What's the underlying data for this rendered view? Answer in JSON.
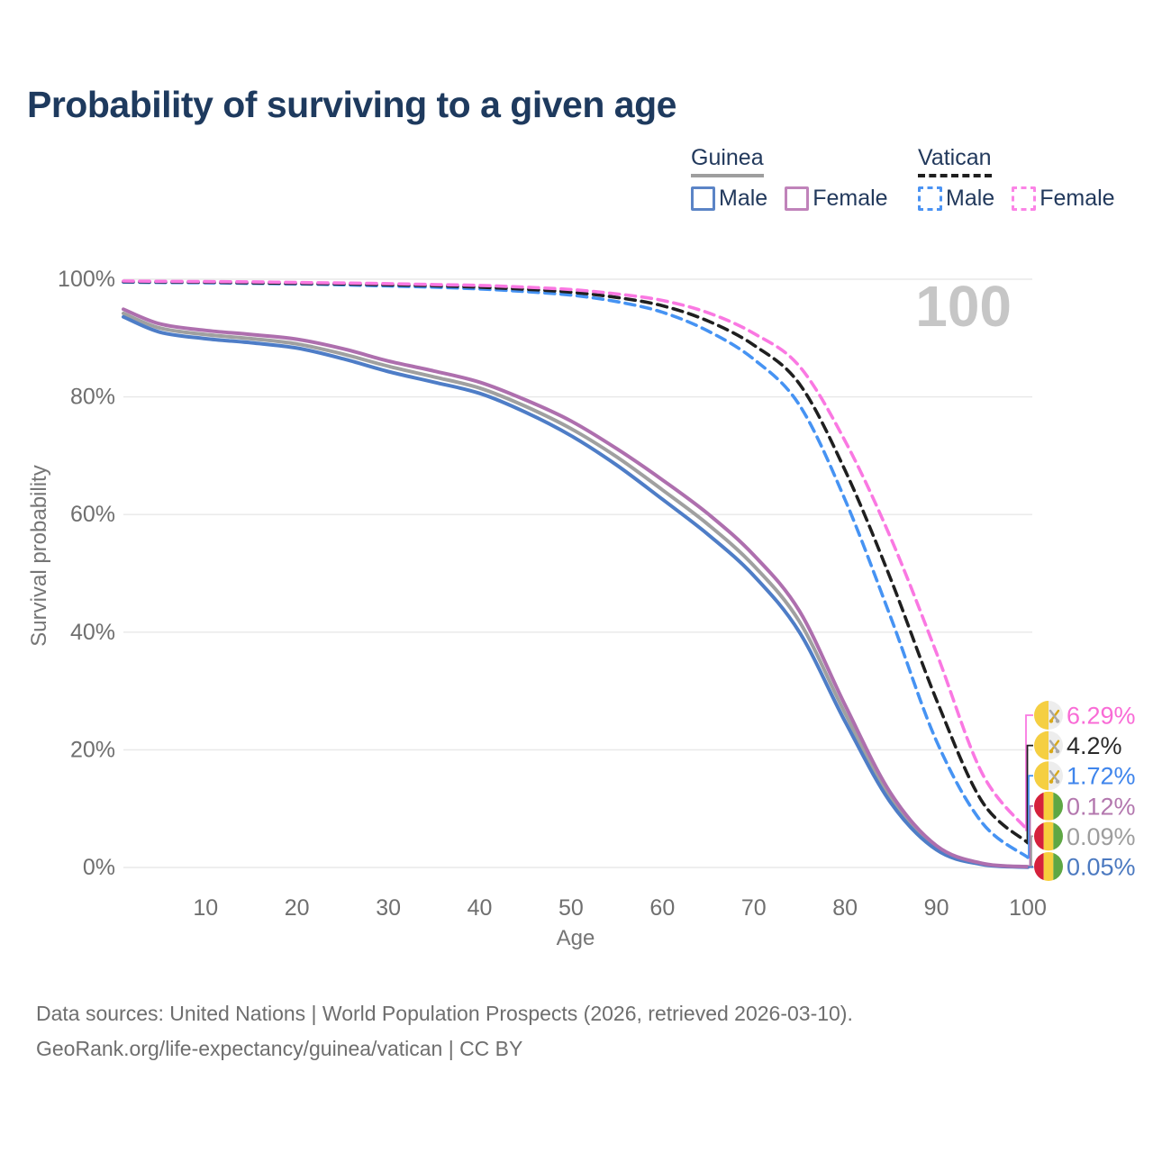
{
  "title": "Probability of surviving to a given age",
  "legend": {
    "groups": [
      {
        "label": "Guinea",
        "style": "solid",
        "items": [
          {
            "label": "Male",
            "color": "#5b84c6"
          },
          {
            "label": "Female",
            "color": "#c083ba"
          }
        ]
      },
      {
        "label": "Vatican",
        "style": "dashed",
        "items": [
          {
            "label": "Male",
            "color": "#4b93f3"
          },
          {
            "label": "Female",
            "color": "#fb84e6"
          }
        ]
      }
    ]
  },
  "age_marker": "100",
  "footer": {
    "line1": "Data sources: United Nations | World Population Prospects (2026, retrieved 2026-03-10).",
    "line2": "GeoRank.org/life-expectancy/guinea/vatican | CC BY"
  },
  "chart_data": {
    "type": "line",
    "title": "Probability of surviving to a given age",
    "xlabel": "Age",
    "ylabel": "Survival probability",
    "xlim": [
      1,
      100
    ],
    "ylim": [
      0,
      100
    ],
    "grid": "horizontal",
    "legend_position": "top-right",
    "x_ticks": [
      10,
      20,
      30,
      40,
      50,
      60,
      70,
      80,
      90,
      100
    ],
    "y_ticks": [
      "0%",
      "20%",
      "40%",
      "60%",
      "80%",
      "100%"
    ],
    "x": [
      1,
      5,
      10,
      15,
      20,
      25,
      30,
      35,
      40,
      45,
      50,
      55,
      60,
      65,
      70,
      75,
      80,
      85,
      90,
      95,
      100
    ],
    "series": [
      {
        "name": "Guinea Male",
        "country": "Guinea",
        "sex": "male",
        "style": "solid",
        "color": "#4e7dc7",
        "label_color": "#4b79c0",
        "flag": "guinea",
        "end_label": "0.05%",
        "end_value": 0.05,
        "values": [
          93.6,
          91.0,
          89.9,
          89.2,
          88.3,
          86.5,
          84.3,
          82.5,
          80.6,
          77.4,
          73.4,
          68.4,
          62.6,
          56.6,
          49.6,
          40.0,
          24.8,
          11.0,
          3.0,
          0.5,
          0.05
        ]
      },
      {
        "name": "Guinea Total",
        "country": "Guinea",
        "sex": "both",
        "style": "solid",
        "color": "#a0a0a0",
        "label_color": "#9d9d9d",
        "flag": "guinea",
        "end_label": "0.09%",
        "end_value": 0.09,
        "values": [
          94.2,
          91.7,
          90.6,
          89.9,
          89.0,
          87.3,
          85.2,
          83.4,
          81.5,
          78.4,
          74.6,
          69.8,
          64.2,
          58.3,
          51.3,
          41.8,
          26.2,
          11.8,
          3.3,
          0.6,
          0.09
        ]
      },
      {
        "name": "Guinea Female",
        "country": "Guinea",
        "sex": "female",
        "style": "solid",
        "color": "#ae6fae",
        "label_color": "#b377ae",
        "flag": "guinea",
        "end_label": "0.12%",
        "end_value": 0.12,
        "values": [
          94.9,
          92.4,
          91.3,
          90.6,
          89.8,
          88.2,
          86.1,
          84.4,
          82.5,
          79.5,
          75.9,
          71.2,
          65.9,
          60.1,
          53.1,
          43.6,
          27.6,
          12.6,
          3.7,
          0.7,
          0.12
        ]
      },
      {
        "name": "Vatican Male",
        "country": "Vatican",
        "sex": "male",
        "style": "dashed",
        "color": "#4693f3",
        "label_color": "#3f85ec",
        "flag": "vatican",
        "end_label": "1.72%",
        "end_value": 1.72,
        "values": [
          99.5,
          99.45,
          99.4,
          99.3,
          99.2,
          99.05,
          98.85,
          98.65,
          98.35,
          97.9,
          97.3,
          96.2,
          94.4,
          91.2,
          86.4,
          78.6,
          62.5,
          42.5,
          21.5,
          7.6,
          1.72
        ]
      },
      {
        "name": "Vatican Total",
        "country": "Vatican",
        "sex": "both",
        "style": "dashed",
        "color": "#1f1f1f",
        "label_color": "#2a2a2a",
        "flag": "vatican",
        "end_label": "4.2%",
        "end_value": 4.2,
        "values": [
          99.6,
          99.55,
          99.5,
          99.4,
          99.3,
          99.2,
          99.05,
          98.9,
          98.65,
          98.3,
          97.8,
          96.9,
          95.5,
          92.9,
          88.8,
          82.2,
          67.5,
          49.0,
          28.5,
          11.2,
          4.2
        ]
      },
      {
        "name": "Vatican Female",
        "country": "Vatican",
        "sex": "female",
        "style": "dashed",
        "color": "#fa78e2",
        "label_color": "#f96bd6",
        "flag": "vatican",
        "end_label": "6.29%",
        "end_value": 6.29,
        "values": [
          99.7,
          99.65,
          99.6,
          99.55,
          99.45,
          99.35,
          99.25,
          99.1,
          98.95,
          98.65,
          98.25,
          97.5,
          96.4,
          94.3,
          90.8,
          85.2,
          72.5,
          56.0,
          36.5,
          16.0,
          6.29
        ]
      }
    ],
    "flag_colors": {
      "guinea": {
        "red": "#d5213c",
        "yellow": "#f7ce3c",
        "green": "#5ea744"
      },
      "vatican": {
        "yellow": "#f5cf42",
        "white": "#ededed",
        "key_gold": "#d9a919",
        "key_gray": "#a9a9a9"
      }
    }
  }
}
